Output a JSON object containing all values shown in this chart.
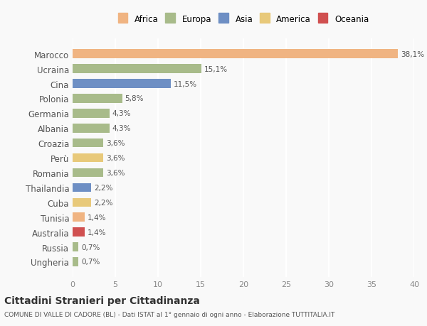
{
  "countries": [
    "Marocco",
    "Ucraina",
    "Cina",
    "Polonia",
    "Germania",
    "Albania",
    "Croazia",
    "Perù",
    "Romania",
    "Thailandia",
    "Cuba",
    "Tunisia",
    "Australia",
    "Russia",
    "Ungheria"
  ],
  "values": [
    38.1,
    15.1,
    11.5,
    5.8,
    4.3,
    4.3,
    3.6,
    3.6,
    3.6,
    2.2,
    2.2,
    1.4,
    1.4,
    0.7,
    0.7
  ],
  "labels": [
    "38,1%",
    "15,1%",
    "11,5%",
    "5,8%",
    "4,3%",
    "4,3%",
    "3,6%",
    "3,6%",
    "3,6%",
    "2,2%",
    "2,2%",
    "1,4%",
    "1,4%",
    "0,7%",
    "0,7%"
  ],
  "colors": [
    "#f0b482",
    "#a8bb8a",
    "#6e8fc4",
    "#a8bb8a",
    "#a8bb8a",
    "#a8bb8a",
    "#a8bb8a",
    "#e8c97a",
    "#a8bb8a",
    "#6e8fc4",
    "#e8c97a",
    "#f0b482",
    "#d05050",
    "#a8bb8a",
    "#a8bb8a"
  ],
  "continents": [
    "Africa",
    "Europa",
    "Asia",
    "Europa",
    "Europa",
    "Europa",
    "Europa",
    "America",
    "Europa",
    "Asia",
    "America",
    "Africa",
    "Oceania",
    "Europa",
    "Europa"
  ],
  "legend_labels": [
    "Africa",
    "Europa",
    "Asia",
    "America",
    "Oceania"
  ],
  "legend_colors": [
    "#f0b482",
    "#a8bb8a",
    "#6e8fc4",
    "#e8c97a",
    "#d05050"
  ],
  "title": "Cittadini Stranieri per Cittadinanza",
  "subtitle": "COMUNE DI VALLE DI CADORE (BL) - Dati ISTAT al 1° gennaio di ogni anno - Elaborazione TUTTITALIA.IT",
  "xlim": [
    0,
    40
  ],
  "xticks": [
    0,
    5,
    10,
    15,
    20,
    25,
    30,
    35,
    40
  ],
  "background_color": "#f9f9f9",
  "grid_color": "#ffffff",
  "bar_height": 0.6
}
